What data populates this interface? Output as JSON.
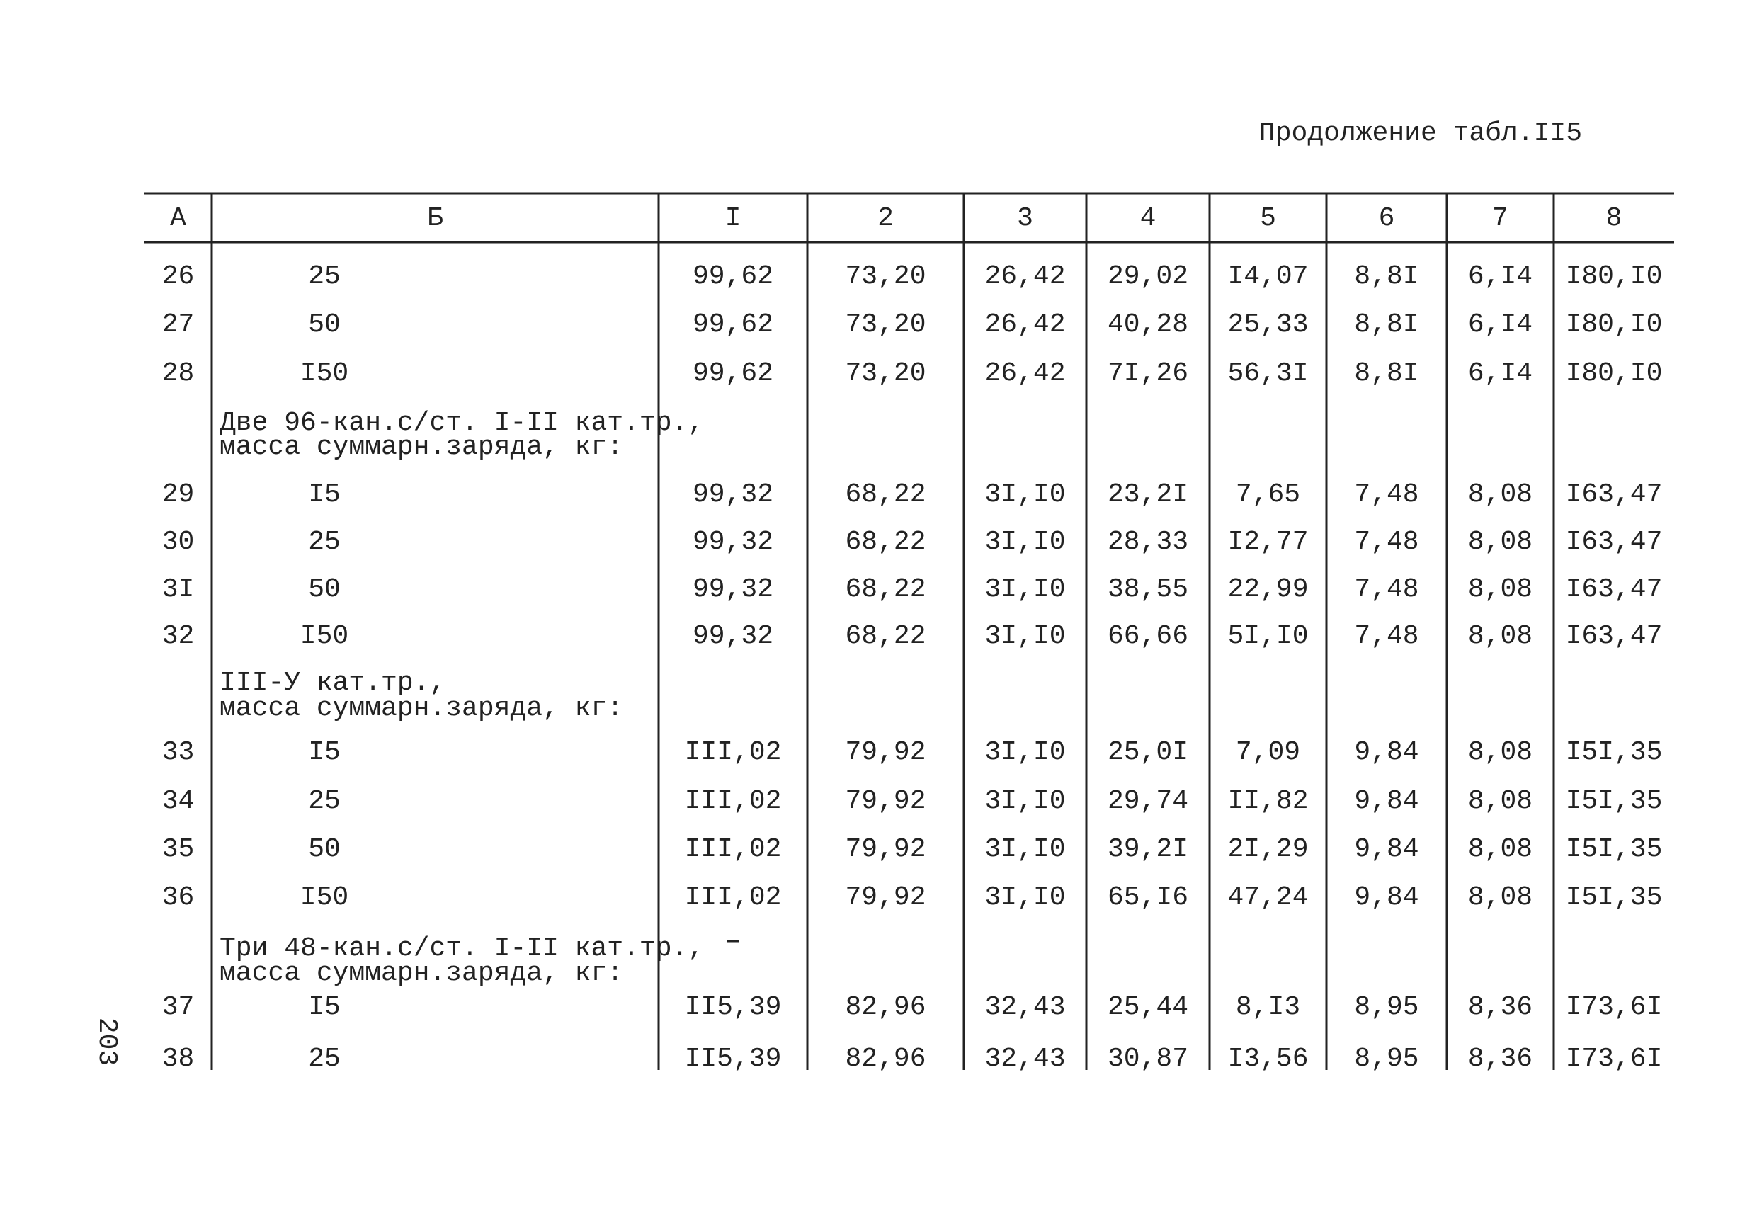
{
  "header": {
    "title": "Продолжение табл.II5"
  },
  "page_number": "203",
  "table": {
    "columns": [
      "А",
      "Б",
      "I",
      "2",
      "3",
      "4",
      "5",
      "6",
      "7",
      "8"
    ],
    "rows": [
      [
        "26",
        "25",
        "99,62",
        "73,20",
        "26,42",
        "29,02",
        "I4,07",
        "8,8I",
        "6,I4",
        "I80,I0"
      ],
      [
        "27",
        "50",
        "99,62",
        "73,20",
        "26,42",
        "40,28",
        "25,33",
        "8,8I",
        "6,I4",
        "I80,I0"
      ],
      [
        "28",
        "I50",
        "99,62",
        "73,20",
        "26,42",
        "7I,26",
        "56,3I",
        "8,8I",
        "6,I4",
        "I80,I0"
      ],
      {
        "lines": [
          "Две 96-кан.с/ст. I-II кат.тр.,",
          "масса суммарн.заряда, кг:"
        ]
      },
      [
        "29",
        "I5",
        "99,32",
        "68,22",
        "3I,I0",
        "23,2I",
        "7,65",
        "7,48",
        "8,08",
        "I63,47"
      ],
      [
        "30",
        "25",
        "99,32",
        "68,22",
        "3I,I0",
        "28,33",
        "I2,77",
        "7,48",
        "8,08",
        "I63,47"
      ],
      [
        "3I",
        "50",
        "99,32",
        "68,22",
        "3I,I0",
        "38,55",
        "22,99",
        "7,48",
        "8,08",
        "I63,47"
      ],
      [
        "32",
        "I50",
        "99,32",
        "68,22",
        "3I,I0",
        "66,66",
        "5I,I0",
        "7,48",
        "8,08",
        "I63,47"
      ],
      {
        "lines": [
          "III-У кат.тр.,",
          "масса суммарн.заряда, кг:"
        ]
      },
      [
        "33",
        "I5",
        "III,02",
        "79,92",
        "3I,I0",
        "25,0I",
        "7,09",
        "9,84",
        "8,08",
        "I5I,35"
      ],
      [
        "34",
        "25",
        "III,02",
        "79,92",
        "3I,I0",
        "29,74",
        "II,82",
        "9,84",
        "8,08",
        "I5I,35"
      ],
      [
        "35",
        "50",
        "III,02",
        "79,92",
        "3I,I0",
        "39,2I",
        "2I,29",
        "9,84",
        "8,08",
        "I5I,35"
      ],
      [
        "36",
        "I50",
        "III,02",
        "79,92",
        "3I,I0",
        "65,I6",
        "47,24",
        "9,84",
        "8,08",
        "I5I,35"
      ],
      {
        "lines": [
          "Три 48-кан.с/ст. I-II кат.тр.,",
          "масса суммарн.заряда, кг:"
        ],
        "dash": "–"
      },
      [
        "37",
        "I5",
        "II5,39",
        "82,96",
        "32,43",
        "25,44",
        "8,I3",
        "8,95",
        "8,36",
        "I73,6I"
      ],
      [
        "38",
        "25",
        "II5,39",
        "82,96",
        "32,43",
        "30,87",
        "I3,56",
        "8,95",
        "8,36",
        "I73,6I"
      ]
    ]
  }
}
